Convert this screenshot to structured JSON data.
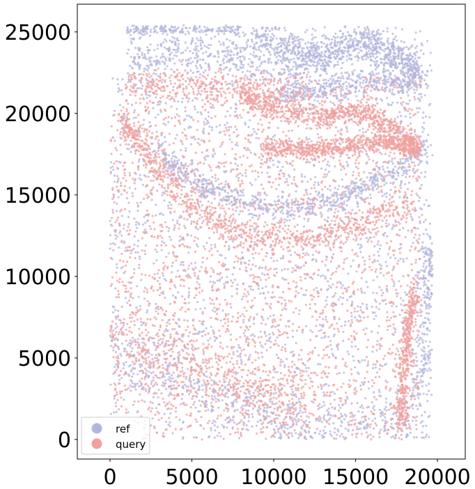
{
  "chart_data": {
    "type": "scatter",
    "title": "",
    "xlabel": "",
    "ylabel": "",
    "xlim": [
      -2000,
      21700
    ],
    "ylim": [
      -1200,
      26700
    ],
    "xticks": [
      0,
      5000,
      10000,
      15000,
      20000
    ],
    "yticks": [
      0,
      5000,
      10000,
      15000,
      20000,
      25000
    ],
    "xtick_labels": [
      "0",
      "5000",
      "10000",
      "15000",
      "20000"
    ],
    "ytick_labels": [
      "0",
      "5000",
      "10000",
      "15000",
      "20000",
      "25000"
    ],
    "grid": false,
    "legend_position": "lower-left",
    "series": [
      {
        "name": "ref",
        "color": "#b3b6dc",
        "description_points": "approx. 6000 spatial spots spanning x 0–19600, y 0–25300; dense bands along curved arcs near y≈23500–25000 (x 9000–19000), y≈14000–17000 (x 3000–19500), and diffuse cloud below y≈12000"
      },
      {
        "name": "query",
        "color": "#f0a09e",
        "description_points": "approx. 5000 spatial spots spanning x 0–19000, y 0–22500; dense arcs near y≈19500–21000 and y≈17500–18500 (x 8000–19000), arc y≈12000–16000, vertical band near x≈18000 (y 1000–8000)"
      }
    ]
  }
}
